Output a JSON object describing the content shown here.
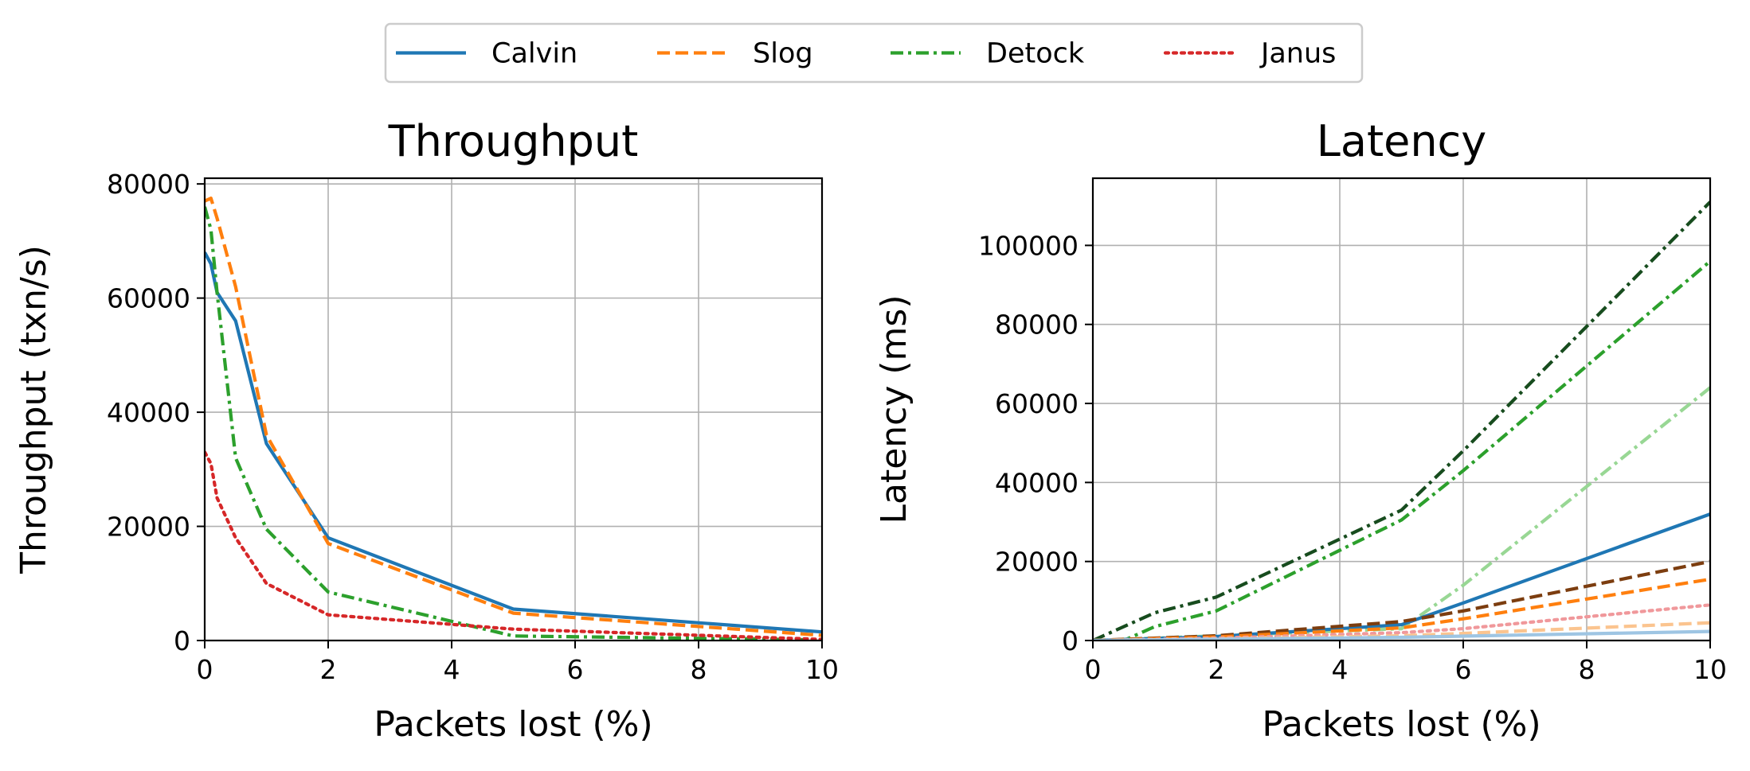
{
  "legend": {
    "placement": "top-center",
    "entries": [
      {
        "label": "Calvin",
        "color": "#1f77b4",
        "dash": "solid"
      },
      {
        "label": "Slog",
        "color": "#ff7f0e",
        "dash": "dashed"
      },
      {
        "label": "Detock",
        "color": "#2ca02c",
        "dash": "dashdot"
      },
      {
        "label": "Janus",
        "color": "#d62728",
        "dash": "dotted"
      }
    ]
  },
  "chart_data": [
    {
      "type": "line",
      "title": "Throughput",
      "xlabel": "Packets lost (%)",
      "ylabel": "Throughput (txn/s)",
      "xlim": [
        0,
        10
      ],
      "ylim": [
        0,
        81000
      ],
      "xticks": [
        0,
        2,
        4,
        6,
        8,
        10
      ],
      "yticks": [
        0,
        20000,
        40000,
        60000,
        80000
      ],
      "grid": true,
      "series": [
        {
          "name": "Calvin",
          "color": "#1f77b4",
          "dash": "solid",
          "x": [
            0,
            0.1,
            0.2,
            0.5,
            1,
            2,
            5,
            10
          ],
          "y": [
            68000,
            66000,
            61000,
            56000,
            34500,
            18000,
            5500,
            1500
          ]
        },
        {
          "name": "Slog",
          "color": "#ff7f0e",
          "dash": "dashed",
          "x": [
            0,
            0.1,
            0.2,
            0.5,
            1,
            2,
            5,
            10
          ],
          "y": [
            77000,
            77500,
            74000,
            62000,
            36000,
            17000,
            4800,
            900
          ]
        },
        {
          "name": "Detock",
          "color": "#2ca02c",
          "dash": "dashdot",
          "x": [
            0,
            0.1,
            0.2,
            0.5,
            1,
            2,
            5,
            10
          ],
          "y": [
            76000,
            72000,
            61000,
            32000,
            19500,
            8500,
            800,
            100
          ]
        },
        {
          "name": "Janus",
          "color": "#d62728",
          "dash": "dotted",
          "x": [
            0,
            0.1,
            0.2,
            0.5,
            1,
            2,
            5,
            10
          ],
          "y": [
            33000,
            31000,
            25000,
            18000,
            10000,
            4500,
            2000,
            200
          ]
        }
      ]
    },
    {
      "type": "line",
      "title": "Latency",
      "xlabel": "Packets lost (%)",
      "ylabel": "Latency (ms)",
      "xlim": [
        0,
        10
      ],
      "ylim": [
        0,
        117000
      ],
      "xticks": [
        0,
        2,
        4,
        6,
        8,
        10
      ],
      "yticks": [
        0,
        20000,
        40000,
        60000,
        80000,
        100000
      ],
      "grid": true,
      "series": [
        {
          "color": "#174c1e",
          "dash": "dashdot",
          "x": [
            0,
            1,
            2,
            5,
            6,
            10
          ],
          "y": [
            0,
            7000,
            11000,
            33000,
            48000,
            111000
          ]
        },
        {
          "color": "#2ca02c",
          "dash": "dashdot",
          "x": [
            0,
            0.5,
            1,
            2,
            5,
            6,
            10
          ],
          "y": [
            0,
            0,
            3500,
            7500,
            30500,
            43000,
            96000
          ]
        },
        {
          "color": "#98d794",
          "dash": "dashdot",
          "x": [
            0,
            5,
            6,
            10
          ],
          "y": [
            0,
            3000,
            14000,
            64000
          ]
        },
        {
          "color": "#1f77b4",
          "dash": "solid",
          "x": [
            0,
            2,
            5,
            6,
            10
          ],
          "y": [
            0,
            1000,
            4000,
            9500,
            32000
          ]
        },
        {
          "color": "#7c3d0f",
          "dash": "dashed",
          "x": [
            0,
            2,
            5,
            6,
            10
          ],
          "y": [
            0,
            1200,
            4800,
            7500,
            20000
          ]
        },
        {
          "color": "#ff7f0e",
          "dash": "dashed",
          "x": [
            0,
            2,
            5,
            6,
            10
          ],
          "y": [
            0,
            900,
            3200,
            5500,
            15500
          ]
        },
        {
          "color": "#f0989b",
          "dash": "dotted",
          "x": [
            0,
            2,
            5,
            6,
            10
          ],
          "y": [
            0,
            600,
            2000,
            3000,
            9000
          ]
        },
        {
          "color": "#fbc48f",
          "dash": "dashed",
          "x": [
            0,
            2,
            5,
            6,
            10
          ],
          "y": [
            0,
            400,
            1200,
            1800,
            4500
          ]
        },
        {
          "color": "#9ec5e3",
          "dash": "solid",
          "x": [
            0,
            2,
            5,
            6,
            10
          ],
          "y": [
            0,
            300,
            800,
            1100,
            2300
          ]
        }
      ]
    }
  ]
}
